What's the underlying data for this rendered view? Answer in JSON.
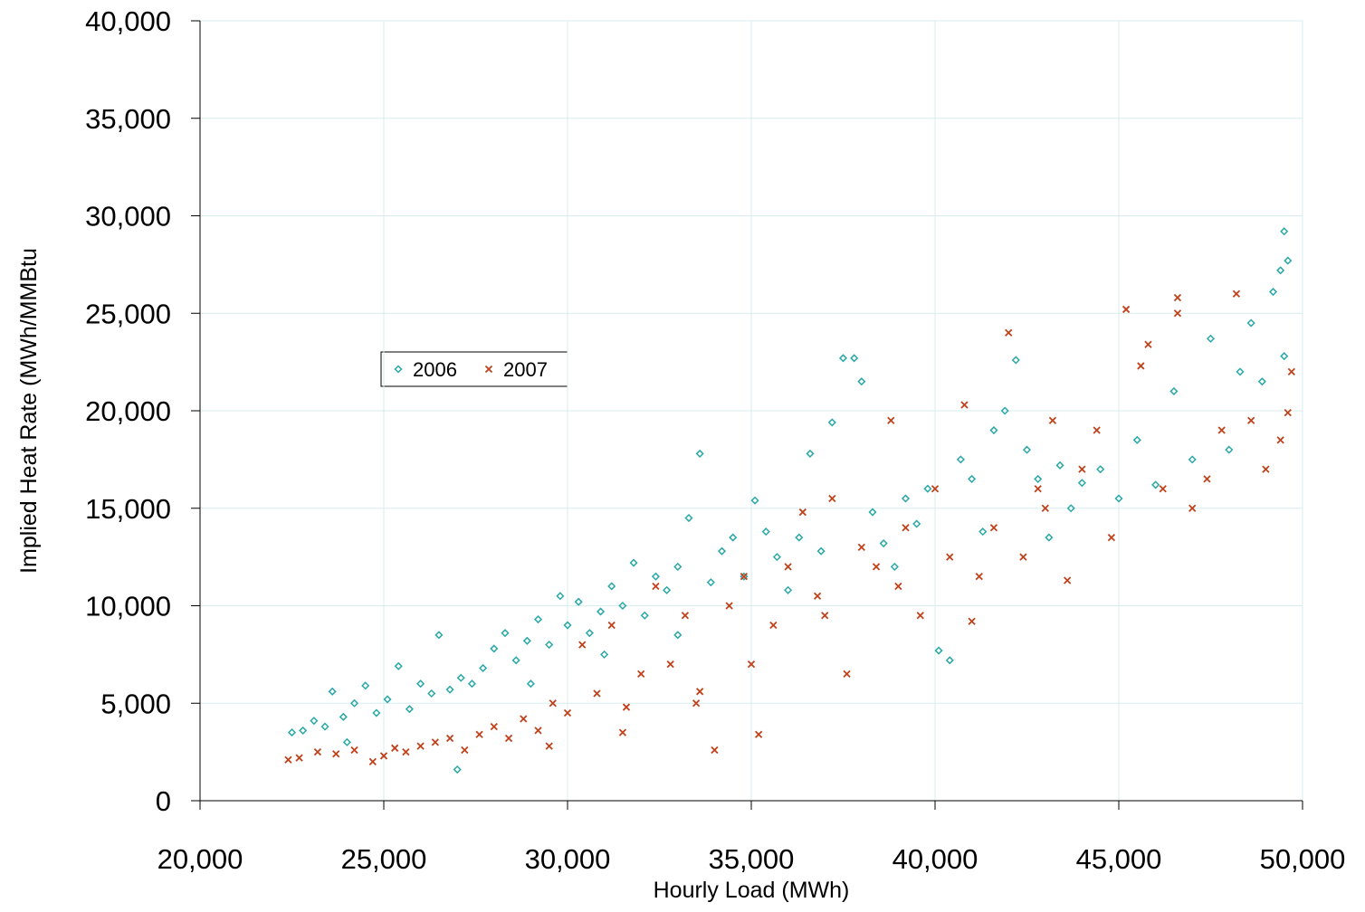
{
  "chart_data": {
    "type": "scatter",
    "x_label": "Hourly Load (MWh)",
    "y_label": "Implied Heat Rate  (MWh/MMBtu",
    "xlim": [
      20000,
      50000
    ],
    "ylim": [
      0,
      40000
    ],
    "xticks": [
      {
        "value": 20000,
        "label": "20,000"
      },
      {
        "value": 25000,
        "label": "25,000"
      },
      {
        "value": 30000,
        "label": "30,000"
      },
      {
        "value": 35000,
        "label": "35,000"
      },
      {
        "value": 40000,
        "label": "40,000"
      },
      {
        "value": 45000,
        "label": "45,000"
      },
      {
        "value": 50000,
        "label": "50,000"
      }
    ],
    "yticks": [
      0,
      {
        "value": 5000,
        "label": "5,000"
      },
      {
        "value": 10000,
        "label": "10,000"
      },
      {
        "value": 15000,
        "label": "15,000"
      },
      {
        "value": 20000,
        "label": "20,000"
      },
      {
        "value": 25000,
        "label": "25,000"
      },
      {
        "value": 30000,
        "label": "30,000"
      },
      {
        "value": 35000,
        "label": "35,000"
      },
      {
        "value": 40000,
        "label": "40,000"
      }
    ],
    "grid": true,
    "legend_position": "upper left",
    "series": [
      {
        "name": "2006",
        "color": "#2aa8a8",
        "marker": "diamond",
        "x": [
          22500,
          22800,
          23100,
          23400,
          23600,
          23900,
          24200,
          24500,
          24800,
          25100,
          25400,
          25700,
          26000,
          26300,
          26500,
          26800,
          27100,
          27400,
          27700,
          28000,
          28300,
          28600,
          28900,
          29200,
          29500,
          29800,
          30000,
          30300,
          30600,
          30900,
          31200,
          31500,
          31800,
          32100,
          32400,
          32700,
          33000,
          33300,
          33600,
          33900,
          34200,
          34500,
          34800,
          35100,
          35400,
          35700,
          36000,
          36300,
          36600,
          36900,
          37200,
          37500,
          37800,
          38000,
          38300,
          38600,
          38900,
          39200,
          39500,
          39800,
          40100,
          40400,
          40700,
          41000,
          41300,
          41600,
          41900,
          42200,
          42500,
          42800,
          43100,
          43400,
          43700,
          44000,
          44500,
          45000,
          45500,
          46000,
          46500,
          47000,
          47500,
          48000,
          48300,
          48600,
          48900,
          49200,
          49400,
          49500,
          49600,
          49500,
          27000,
          24000,
          29000,
          31000,
          33000
        ],
        "values": [
          3500,
          3600,
          4100,
          3800,
          5600,
          4300,
          5000,
          5900,
          4500,
          5200,
          6900,
          4700,
          6000,
          5500,
          8500,
          5700,
          6300,
          6000,
          6800,
          7800,
          8600,
          7200,
          8200,
          9300,
          8000,
          10500,
          9000,
          10200,
          8600,
          9700,
          11000,
          10000,
          12200,
          9500,
          11500,
          10800,
          12000,
          14500,
          17800,
          11200,
          12800,
          13500,
          11500,
          15400,
          13800,
          12500,
          10800,
          13500,
          17800,
          12800,
          19400,
          22700,
          22700,
          21500,
          14800,
          13200,
          12000,
          15500,
          14200,
          16000,
          7700,
          7200,
          17500,
          16500,
          13800,
          19000,
          20000,
          22600,
          18000,
          16500,
          13500,
          17200,
          15000,
          16300,
          17000,
          15500,
          18500,
          16200,
          21000,
          17500,
          23700,
          18000,
          22000,
          24500,
          21500,
          26100,
          27200,
          29200,
          27700,
          22800,
          1600,
          3000,
          6000,
          7500,
          8500
        ]
      },
      {
        "name": "2007",
        "color": "#c0411a",
        "marker": "x",
        "x": [
          22400,
          22700,
          23200,
          23700,
          24200,
          24700,
          25000,
          25300,
          25600,
          26000,
          26400,
          26800,
          27200,
          27600,
          28000,
          28400,
          28800,
          29200,
          29600,
          30000,
          30400,
          30800,
          31200,
          31600,
          32000,
          32400,
          32800,
          33200,
          33600,
          34000,
          34400,
          34800,
          35200,
          35600,
          36000,
          36400,
          36800,
          37200,
          37600,
          38000,
          38400,
          38800,
          39200,
          39600,
          40000,
          40400,
          40800,
          41200,
          41600,
          42000,
          42400,
          42800,
          43200,
          43600,
          44000,
          44400,
          44800,
          45200,
          45600,
          45800,
          46200,
          46600,
          46600,
          47000,
          47400,
          47800,
          48200,
          48600,
          49000,
          49400,
          49600,
          49700,
          29500,
          31500,
          33500,
          35000,
          37000,
          39000,
          41000,
          43000
        ],
        "values": [
          2100,
          2200,
          2500,
          2400,
          2600,
          2000,
          2300,
          2700,
          2500,
          2800,
          3000,
          3200,
          2600,
          3400,
          3800,
          3200,
          4200,
          3600,
          5000,
          4500,
          8000,
          5500,
          9000,
          4800,
          6500,
          11000,
          7000,
          9500,
          5600,
          2600,
          10000,
          11500,
          3400,
          9000,
          12000,
          14800,
          10500,
          15500,
          6500,
          13000,
          12000,
          19500,
          14000,
          9500,
          16000,
          12500,
          20300,
          11500,
          14000,
          24000,
          12500,
          16000,
          19500,
          11300,
          17000,
          19000,
          13500,
          25200,
          22300,
          23400,
          16000,
          25800,
          25000,
          15000,
          16500,
          19000,
          26000,
          19500,
          17000,
          18500,
          19900,
          22000,
          2800,
          3500,
          5000,
          7000,
          9500,
          11000,
          9200,
          15000
        ]
      }
    ]
  }
}
